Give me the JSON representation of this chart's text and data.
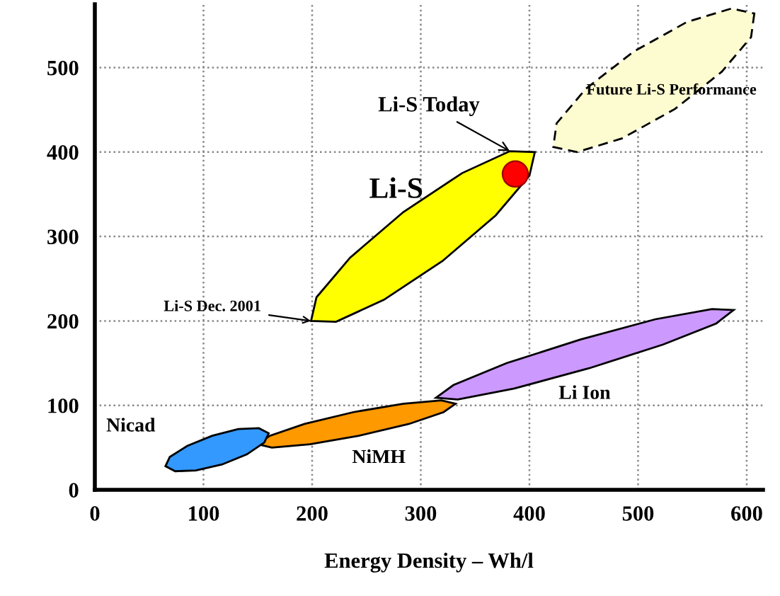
{
  "chart_data": {
    "type": "scatter",
    "xlabel": "Energy Density – Wh/l",
    "xlim": [
      0,
      615
    ],
    "xticks": [
      0,
      100,
      200,
      300,
      400,
      500,
      600
    ],
    "ylim": [
      0,
      575
    ],
    "yticks": [
      0,
      100,
      200,
      300,
      400,
      500
    ],
    "grid": true,
    "series": [
      {
        "name": "Nicad",
        "type": "area",
        "color": "#3399ff",
        "x": [
          160,
          156,
          140,
          117,
          93,
          74,
          65,
          69,
          85,
          108,
          132,
          151
        ],
        "values": [
          67,
          56,
          42,
          30,
          23,
          22,
          28,
          39,
          52,
          64,
          72,
          73
        ]
      },
      {
        "name": "NiMH",
        "type": "area",
        "color": "#ff9900",
        "x": [
          332,
          321,
          289,
          243,
          198,
          163,
          150,
          161,
          193,
          238,
          284,
          319
        ],
        "values": [
          102,
          92,
          78,
          64,
          54,
          50,
          54,
          64,
          78,
          92,
          102,
          106
        ]
      },
      {
        "name": "Li Ion",
        "type": "area",
        "color": "#cc99ff",
        "x": [
          588,
          572,
          523,
          455,
          386,
          334,
          314,
          330,
          379,
          447,
          516,
          568
        ],
        "values": [
          213,
          197,
          172,
          144,
          120,
          107,
          109,
          124,
          150,
          178,
          202,
          214
        ]
      },
      {
        "name": "Li-S",
        "type": "area",
        "color": "#ffff00",
        "x": [
          405,
          400,
          369,
          320,
          266,
          222,
          199,
          204,
          235,
          284,
          338,
          382
        ],
        "values": [
          400,
          372,
          325,
          271,
          225,
          199,
          200,
          228,
          275,
          329,
          375,
          401
        ]
      },
      {
        "name": "Future Li-S Performance",
        "type": "area",
        "color": "#fdfbd0",
        "line_style": "dashed",
        "x": [
          607,
          604,
          577,
          534,
          485,
          444,
          422,
          425,
          452,
          496,
          545,
          586
        ],
        "values": [
          564,
          536,
          495,
          451,
          416,
          400,
          406,
          434,
          475,
          519,
          554,
          570
        ]
      },
      {
        "color": "#ff0000",
        "marker": "circle",
        "x": [
          387
        ],
        "values": [
          374
        ]
      }
    ],
    "annotations": [
      {
        "text": "Li-S Today",
        "x": 382,
        "y": 401
      },
      {
        "text": "Li-S Dec. 2001",
        "x": 199,
        "y": 200
      }
    ]
  }
}
